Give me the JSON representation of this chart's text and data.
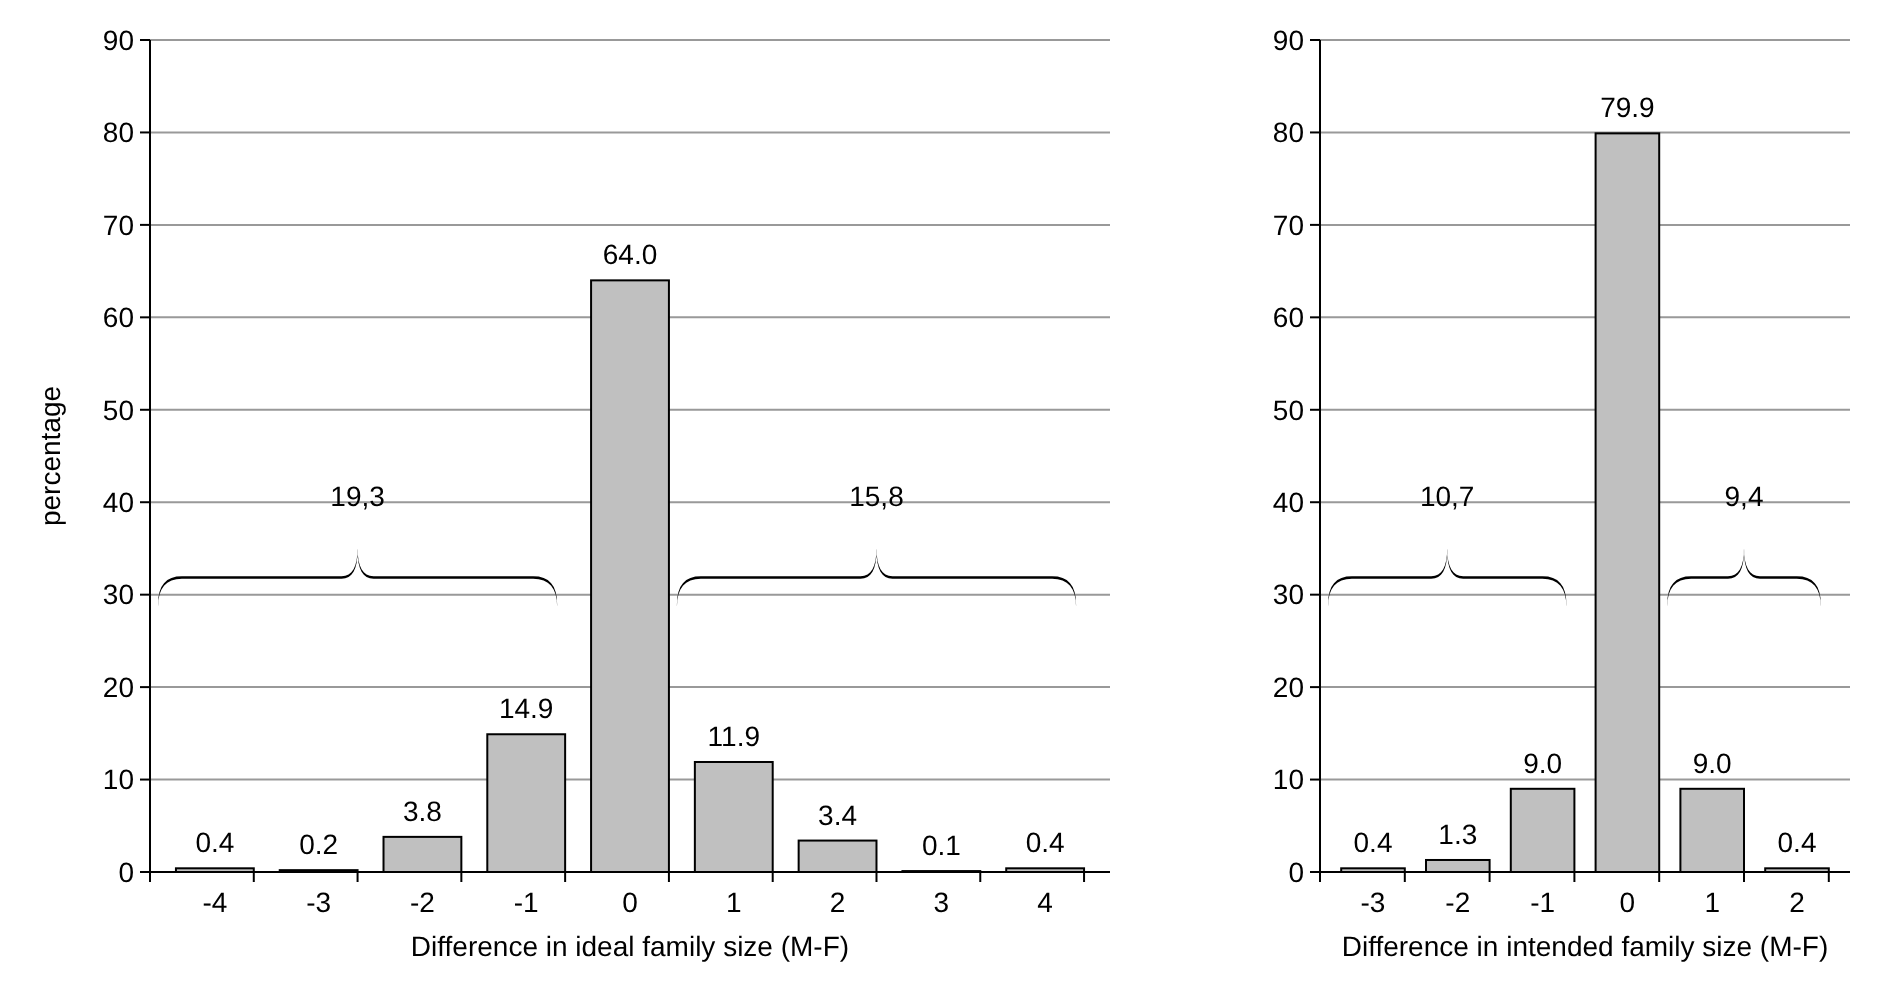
{
  "chart_data": [
    {
      "type": "bar",
      "categories": [
        "-4",
        "-3",
        "-2",
        "-1",
        "0",
        "1",
        "2",
        "3",
        "4"
      ],
      "values": [
        0.4,
        0.2,
        3.8,
        14.9,
        64.0,
        11.9,
        3.4,
        0.1,
        0.4
      ],
      "value_labels": [
        "0.4",
        "0.2",
        "3.8",
        "14.9",
        "64.0",
        "11.9",
        "3.4",
        "0.1",
        "0.4"
      ],
      "color": "#c0c0c0",
      "ylim": [
        0,
        90
      ],
      "yticks": [
        0,
        10,
        20,
        30,
        40,
        50,
        60,
        70,
        80,
        90
      ],
      "grid": "y",
      "ylabel": "percentage",
      "xlabel": "Difference in ideal family size (M-F)",
      "annotations": [
        "19,3",
        "15,8"
      ]
    },
    {
      "type": "bar",
      "categories": [
        "-3",
        "-2",
        "-1",
        "0",
        "1",
        "2"
      ],
      "values": [
        0.4,
        1.3,
        9.0,
        79.9,
        9.0,
        0.4
      ],
      "value_labels": [
        "0.4",
        "1.3",
        "9.0",
        "79.9",
        "9.0",
        "0.4"
      ],
      "color": "#c0c0c0",
      "ylim": [
        0,
        90
      ],
      "yticks": [
        0,
        10,
        20,
        30,
        40,
        50,
        60,
        70,
        80,
        90
      ],
      "grid": "y",
      "xlabel": "Difference in intended family size (M-F)",
      "annotations": [
        "10,7",
        "9,4"
      ]
    }
  ]
}
